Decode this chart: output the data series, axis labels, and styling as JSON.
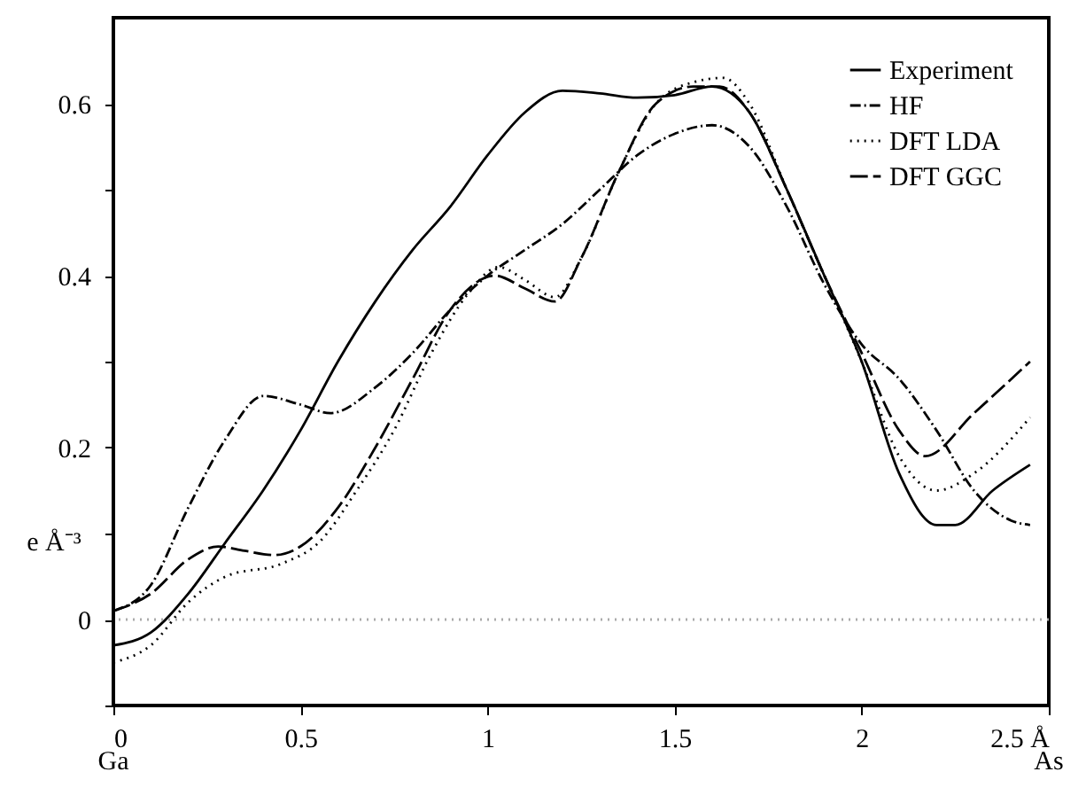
{
  "chart_data": {
    "type": "line",
    "ylabel": "e Å⁻³",
    "xlim": [
      0,
      2.5
    ],
    "ylim": [
      -0.1,
      0.7
    ],
    "xticks": [
      0,
      0.5,
      1,
      1.5,
      2,
      {
        "value": 2.5,
        "label": "2.5 Å"
      }
    ],
    "yticks": [
      {
        "value": -0.1,
        "label": null
      },
      0,
      {
        "value": 0.1,
        "label": null
      },
      0.2,
      {
        "value": 0.3,
        "label": null
      },
      0.4,
      {
        "value": 0.5,
        "label": null
      },
      0.6
    ],
    "grid": false,
    "legend": "top right",
    "marker": "none",
    "ref_lines": [
      {
        "axis": "y",
        "value": 0,
        "color": "#aaaaaa",
        "line_style": "dotted"
      }
    ],
    "annotations": [
      "Ga",
      "As"
    ],
    "series": [
      {
        "name": "Experiment",
        "color": "#000000",
        "line_style": "solid",
        "x": [
          0,
          0.1,
          0.2,
          0.3,
          0.4,
          0.5,
          0.6,
          0.7,
          0.8,
          0.9,
          1.0,
          1.1,
          1.2,
          1.3,
          1.4,
          1.5,
          1.6,
          1.7,
          1.8,
          1.9,
          2.0,
          2.1,
          2.2,
          2.25,
          2.35,
          2.45
        ],
        "values": [
          -0.03,
          -0.015,
          0.03,
          0.09,
          0.15,
          0.22,
          0.3,
          0.37,
          0.43,
          0.48,
          0.54,
          0.59,
          0.615,
          0.612,
          0.607,
          0.61,
          0.62,
          0.59,
          0.5,
          0.4,
          0.3,
          0.17,
          0.11,
          0.11,
          0.15,
          0.18
        ]
      },
      {
        "name": "HF",
        "color": "#000000",
        "line_style": "dashdot",
        "x": [
          0,
          0.1,
          0.2,
          0.3,
          0.4,
          0.5,
          0.58,
          0.7,
          0.8,
          0.9,
          1.0,
          1.1,
          1.2,
          1.3,
          1.4,
          1.5,
          1.6,
          1.7,
          1.8,
          1.9,
          2.0,
          2.1,
          2.2,
          2.3,
          2.4,
          2.45
        ],
        "values": [
          0.01,
          0.04,
          0.13,
          0.21,
          0.26,
          0.25,
          0.24,
          0.27,
          0.31,
          0.36,
          0.4,
          0.43,
          0.46,
          0.5,
          0.54,
          0.565,
          0.575,
          0.55,
          0.48,
          0.39,
          0.32,
          0.28,
          0.22,
          0.15,
          0.115,
          0.11
        ]
      },
      {
        "name": "DFT LDA",
        "color": "#000000",
        "line_style": "dotted",
        "x": [
          0,
          0.1,
          0.2,
          0.3,
          0.45,
          0.55,
          0.65,
          0.75,
          0.85,
          0.95,
          1.03,
          1.1,
          1.18,
          1.25,
          1.35,
          1.45,
          1.55,
          1.63,
          1.7,
          1.8,
          1.9,
          2.0,
          2.1,
          2.2,
          2.3,
          2.45
        ],
        "values": [
          -0.05,
          -0.03,
          0.02,
          0.05,
          0.065,
          0.09,
          0.15,
          0.22,
          0.31,
          0.38,
          0.41,
          0.395,
          0.375,
          0.42,
          0.52,
          0.6,
          0.625,
          0.63,
          0.6,
          0.5,
          0.4,
          0.3,
          0.19,
          0.15,
          0.17,
          0.235
        ]
      },
      {
        "name": "DFT GGC",
        "color": "#000000",
        "line_style": "dashed",
        "x": [
          0,
          0.1,
          0.2,
          0.28,
          0.35,
          0.43,
          0.5,
          0.6,
          0.7,
          0.8,
          0.9,
          1.02,
          1.1,
          1.18,
          1.25,
          1.35,
          1.45,
          1.55,
          1.62,
          1.7,
          1.8,
          1.9,
          2.0,
          2.1,
          2.17,
          2.3,
          2.45
        ],
        "values": [
          0.01,
          0.03,
          0.07,
          0.085,
          0.08,
          0.075,
          0.085,
          0.13,
          0.2,
          0.28,
          0.36,
          0.4,
          0.385,
          0.37,
          0.42,
          0.52,
          0.6,
          0.62,
          0.62,
          0.59,
          0.5,
          0.4,
          0.31,
          0.22,
          0.19,
          0.24,
          0.3
        ]
      }
    ]
  }
}
